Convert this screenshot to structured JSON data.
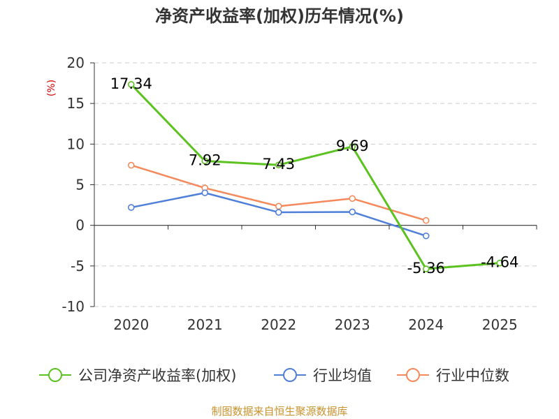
{
  "chart_data": {
    "type": "line",
    "title": "净资产收益率(加权)历年情况(%)",
    "ylabel": "(%)",
    "xlabel": "",
    "categories": [
      "2020",
      "2021",
      "2022",
      "2023",
      "2024",
      "2025"
    ],
    "ylim": [
      -10,
      20
    ],
    "yticks": [
      20,
      15,
      10,
      5,
      0,
      -5,
      -10
    ],
    "grid": true,
    "legend_position": "bottom",
    "series": [
      {
        "name": "公司净资产收益率(加权)",
        "color": "#5cc21f",
        "values": [
          17.34,
          7.92,
          7.43,
          9.69,
          -5.36,
          -4.64
        ],
        "labels": [
          "17.34",
          "7.92",
          "7.43",
          "9.69",
          "-5.36",
          "-4.64"
        ]
      },
      {
        "name": "行业均值",
        "color": "#4f7fd9",
        "values": [
          2.2,
          4.0,
          1.6,
          1.65,
          -1.3,
          null
        ]
      },
      {
        "name": "行业中位数",
        "color": "#f5895c",
        "values": [
          7.4,
          4.6,
          2.35,
          3.3,
          0.6,
          null
        ]
      }
    ],
    "source": "制图数据来自恒生聚源数据库"
  }
}
